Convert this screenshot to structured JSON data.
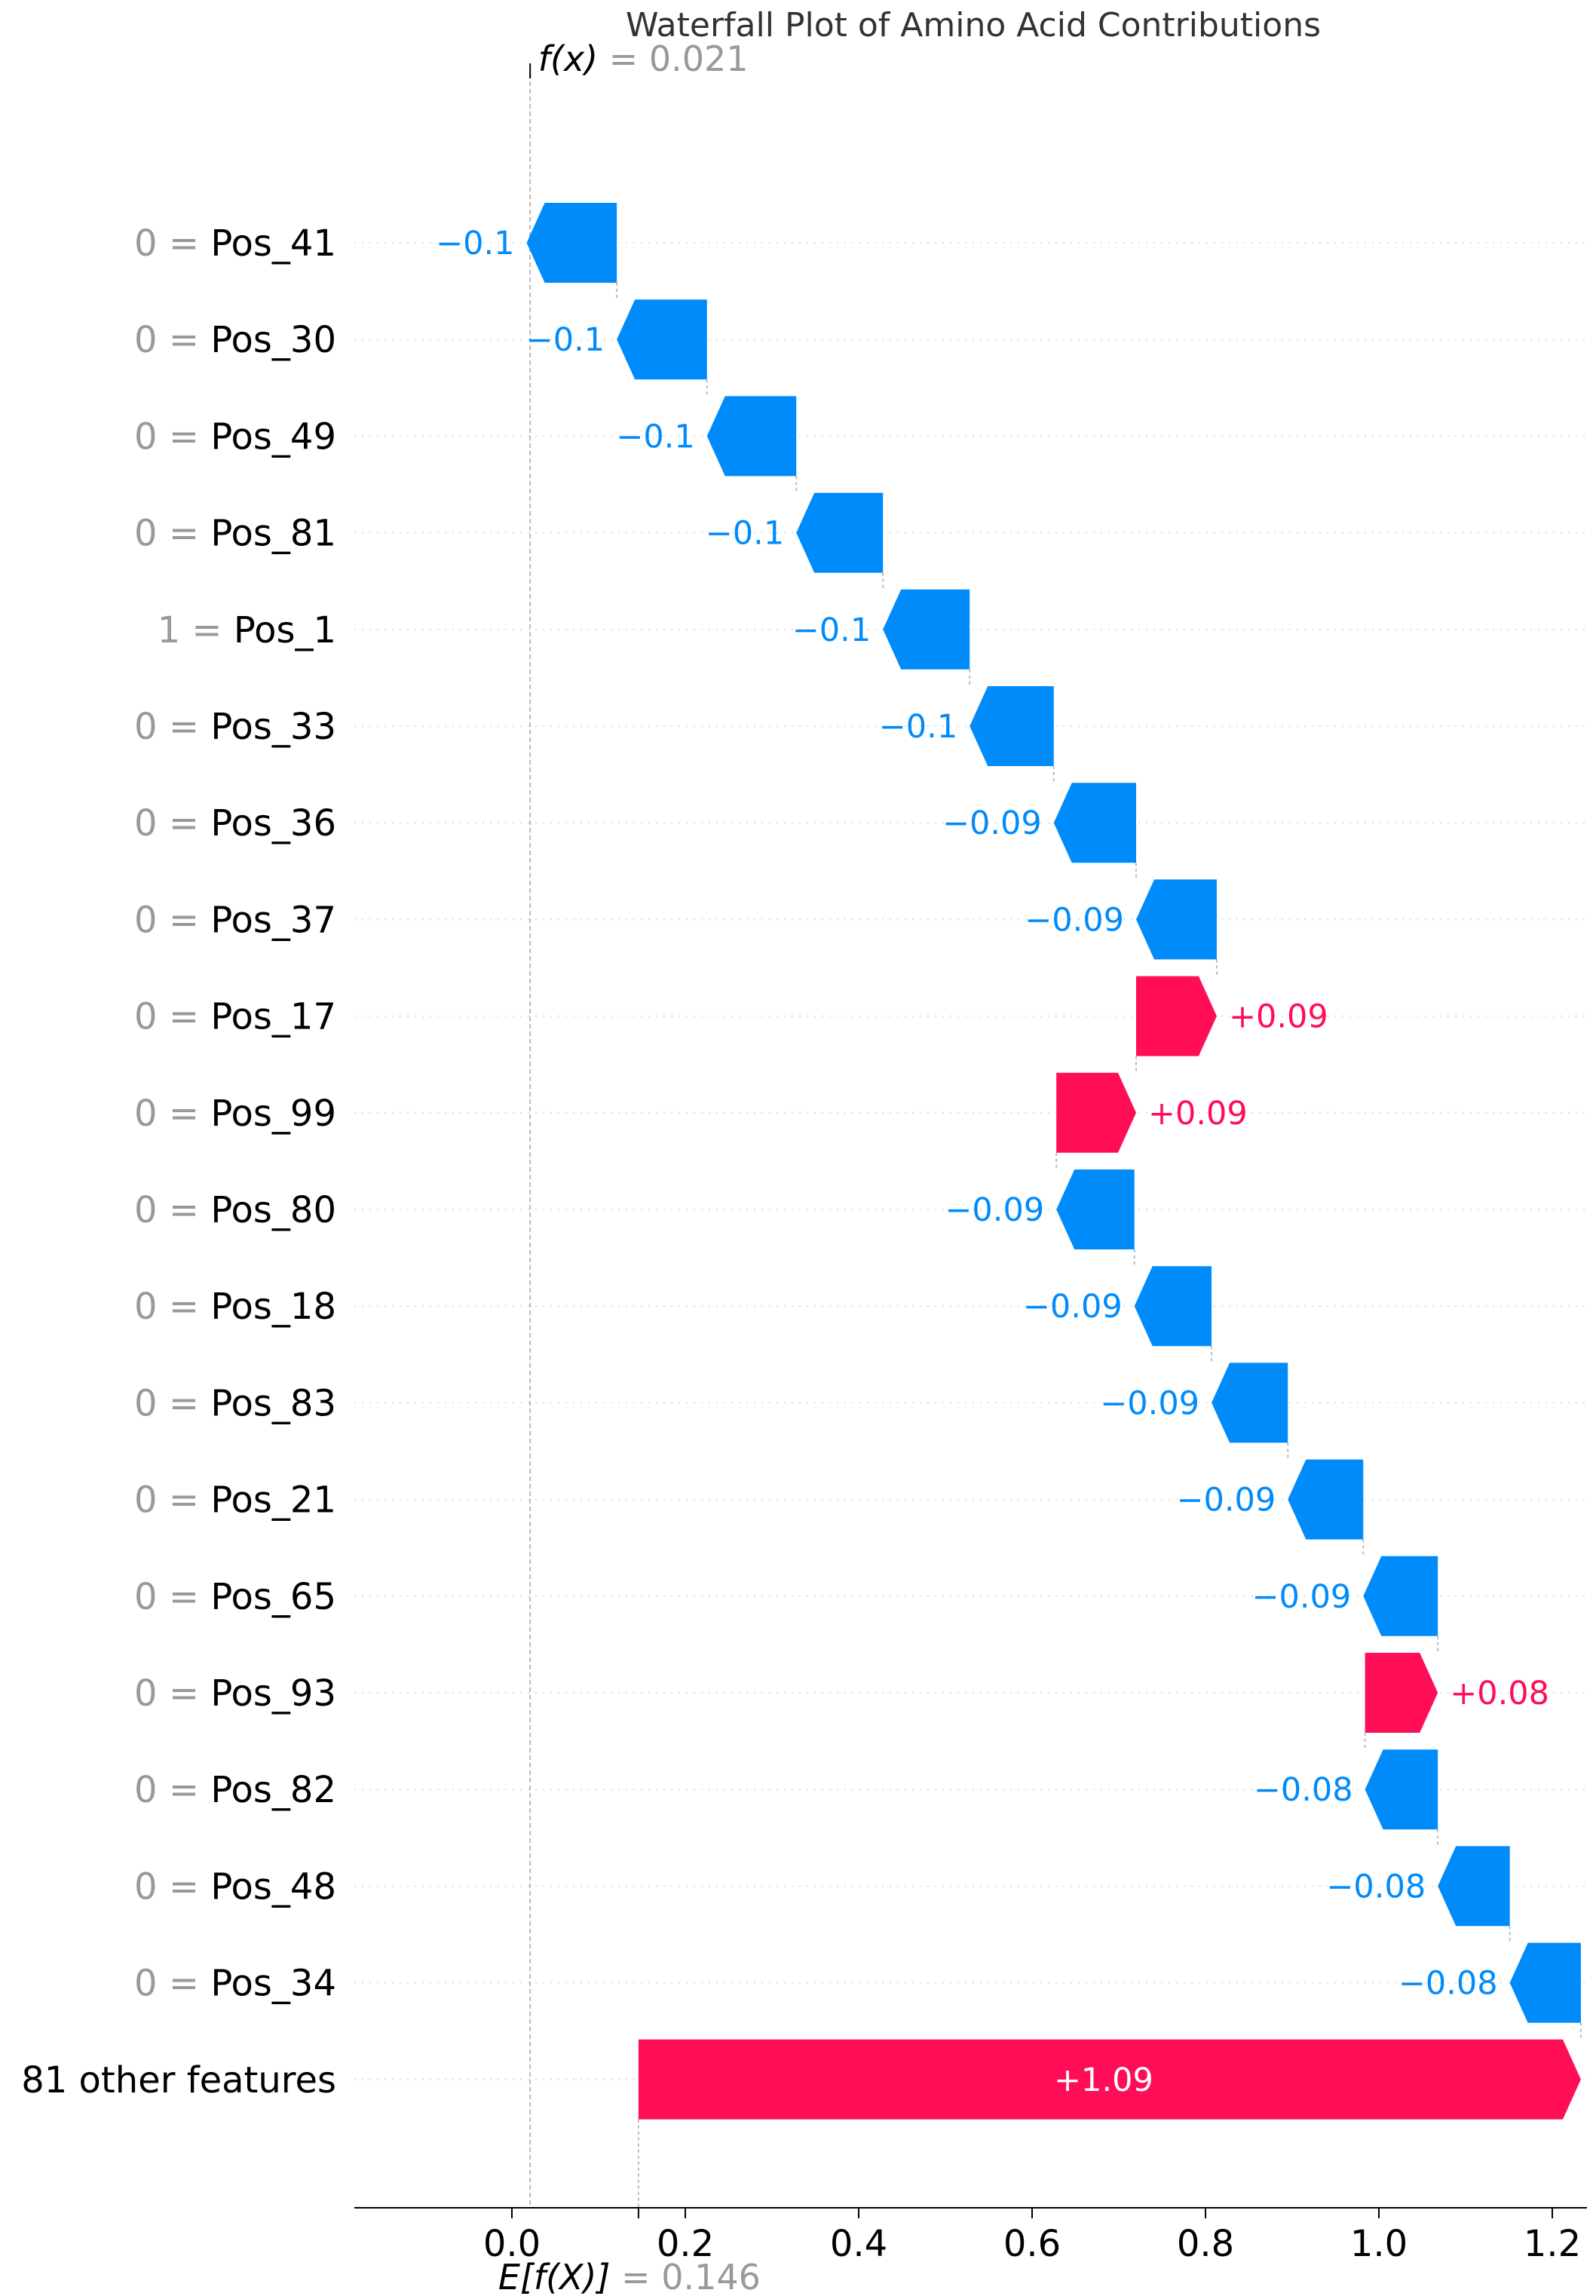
{
  "chart_data": {
    "type": "bar",
    "subtype": "waterfall",
    "title": "Waterfall Plot of Amino Acid Contributions",
    "fx": {
      "label": "f(x)",
      "value_text": "0.021",
      "value": 0.021
    },
    "base": {
      "label": "E[f(X)]",
      "value_text": "0.146",
      "value": 0.146
    },
    "xlim": [
      -0.2,
      1.23
    ],
    "xticks": [
      0.0,
      0.2,
      0.4,
      0.6,
      0.8,
      1.0,
      1.2
    ],
    "xtick_labels": [
      "0.0",
      "0.2",
      "0.4",
      "0.6",
      "0.8",
      "1.0",
      "1.2"
    ],
    "grid": "horizontal dotted",
    "colors": {
      "positive": "#ff0d57",
      "negative": "#008bfb",
      "muted": "#999999"
    },
    "features": [
      {
        "value": "0",
        "name": "Pos_41",
        "contribution": -0.104,
        "label": "−0.1"
      },
      {
        "value": "0",
        "name": "Pos_30",
        "contribution": -0.104,
        "label": "−0.1"
      },
      {
        "value": "0",
        "name": "Pos_49",
        "contribution": -0.103,
        "label": "−0.1"
      },
      {
        "value": "0",
        "name": "Pos_81",
        "contribution": -0.1,
        "label": "−0.1"
      },
      {
        "value": "1",
        "name": "Pos_1",
        "contribution": -0.1,
        "label": "−0.1"
      },
      {
        "value": "0",
        "name": "Pos_33",
        "contribution": -0.097,
        "label": "−0.1"
      },
      {
        "value": "0",
        "name": "Pos_36",
        "contribution": -0.095,
        "label": "−0.09"
      },
      {
        "value": "0",
        "name": "Pos_37",
        "contribution": -0.093,
        "label": "−0.09"
      },
      {
        "value": "0",
        "name": "Pos_17",
        "contribution": 0.093,
        "label": "+0.09"
      },
      {
        "value": "0",
        "name": "Pos_99",
        "contribution": 0.092,
        "label": "+0.09"
      },
      {
        "value": "0",
        "name": "Pos_80",
        "contribution": -0.09,
        "label": "−0.09"
      },
      {
        "value": "0",
        "name": "Pos_18",
        "contribution": -0.089,
        "label": "−0.09"
      },
      {
        "value": "0",
        "name": "Pos_83",
        "contribution": -0.088,
        "label": "−0.09"
      },
      {
        "value": "0",
        "name": "Pos_21",
        "contribution": -0.087,
        "label": "−0.09"
      },
      {
        "value": "0",
        "name": "Pos_65",
        "contribution": -0.086,
        "label": "−0.09"
      },
      {
        "value": "0",
        "name": "Pos_93",
        "contribution": 0.084,
        "label": "+0.08"
      },
      {
        "value": "0",
        "name": "Pos_82",
        "contribution": -0.084,
        "label": "−0.08"
      },
      {
        "value": "0",
        "name": "Pos_48",
        "contribution": -0.083,
        "label": "−0.08"
      },
      {
        "value": "0",
        "name": "Pos_34",
        "contribution": -0.082,
        "label": "−0.08"
      },
      {
        "value": "",
        "name": "81 other features",
        "contribution": 1.087,
        "label": "+1.09"
      }
    ]
  }
}
